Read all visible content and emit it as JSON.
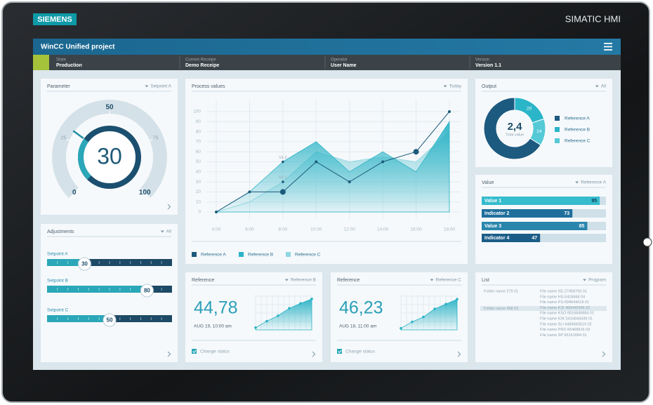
{
  "brand": "SIEMENS",
  "device": "SIMATIC HMI",
  "header": {
    "title": "WinCC Unified project"
  },
  "status": [
    {
      "label": "State",
      "value": "Production"
    },
    {
      "label": "Current Receipe",
      "value": "Demo Receipe"
    },
    {
      "label": "Operator",
      "value": "User Name"
    },
    {
      "label": "Version",
      "value": "Version 1.1"
    }
  ],
  "chart_data": [
    {
      "type": "gauge",
      "title": "Parameter",
      "selector": "Setpoint A",
      "value": 30,
      "ylim": [
        0,
        100
      ],
      "yticks": [
        0,
        25,
        50,
        75,
        100
      ],
      "color": "#2aa7b8"
    },
    {
      "type": "line",
      "title": "Process values",
      "selector": "Today",
      "categories": [
        "4:00",
        "6:00",
        "8:00",
        "10:00",
        "12:00",
        "14:00",
        "16:00",
        "18:00"
      ],
      "ylim": [
        0,
        100
      ],
      "yticks": [
        0,
        10,
        20,
        30,
        40,
        50,
        60,
        70,
        80,
        90,
        100
      ],
      "grid": true,
      "series": [
        {
          "name": "Reference A",
          "color": "#1d5a7c",
          "style": "line",
          "values": [
            0,
            20,
            20,
            50,
            30,
            50,
            60,
            100
          ]
        },
        {
          "name": "Reference B",
          "color": "#2bb3c6",
          "style": "area",
          "values": [
            0,
            20,
            50,
            70,
            40,
            60,
            40,
            90
          ]
        },
        {
          "name": "Reference C",
          "color": "#8fd6e0",
          "style": "area",
          "values": [
            0,
            10,
            30,
            60,
            50,
            55,
            50,
            80
          ]
        }
      ],
      "annotations": [
        {
          "text": "V1.2",
          "x": "8:00",
          "y": 50
        },
        {
          "text": "V2.1",
          "x": "8:00",
          "y": 30
        }
      ]
    },
    {
      "type": "pie",
      "title": "Output",
      "selector": "All",
      "categories": [
        "Reference A",
        "Reference B",
        "Reference C"
      ],
      "values": [
        66,
        20,
        14
      ],
      "value_labels": [
        null,
        "20",
        "14"
      ],
      "colors": [
        "#1d5a80",
        "#2bb5c8",
        "#55c9d6"
      ],
      "center_value": "2,4",
      "center_label": "Total value"
    },
    {
      "type": "bar",
      "title": "Value",
      "selector": "Reference A",
      "categories": [
        "Value 1",
        "Indicator 2",
        "Value 3",
        "Indicator 4"
      ],
      "values": [
        95,
        73,
        85,
        47
      ],
      "xlim": [
        0,
        100
      ],
      "colors": [
        "#35bccd",
        "#1f6f9c",
        "#2a86ad",
        "#1c5d88"
      ]
    },
    {
      "type": "slider",
      "title": "Adjustments",
      "selector": "All",
      "categories": [
        "Setpoint A",
        "Setpoint B",
        "Setpoint C"
      ],
      "values": [
        30,
        80,
        50
      ],
      "xlim": [
        0,
        100
      ],
      "color": "#2aa7b8"
    },
    {
      "type": "area",
      "title": "Reference",
      "selector": "Reference B",
      "value_text": "44,78",
      "date": "AUG 19, 10:00 am",
      "checkbox": "Change status",
      "values": [
        7,
        27,
        44,
        67,
        82,
        96
      ],
      "ylim": [
        0,
        100
      ],
      "color": "#2bb3c6"
    },
    {
      "type": "area",
      "title": "Reference",
      "selector": "Reference C",
      "value_text": "46,23",
      "date": "AUG 18, 11:00 am",
      "checkbox": "Change status",
      "values": [
        5,
        25,
        40,
        65,
        80,
        95
      ],
      "ylim": [
        0,
        100
      ],
      "color": "#2bb3c6"
    }
  ],
  "list": {
    "title": "List",
    "selector": "Program",
    "folders": [
      "Folder name 279 01",
      "Folder name 468 02"
    ],
    "files": [
      "File name SE-27458793 01",
      "File name HS-5418468 04",
      "File name PS-694544618 01",
      "File name KSI 468446584 02",
      "File name KSO 6516849684 01",
      "File name IOK 5416844349 01",
      "File name SLI 6484843519 02",
      "File name PRO 65468916 03",
      "File name SP 65161684 01"
    ]
  }
}
